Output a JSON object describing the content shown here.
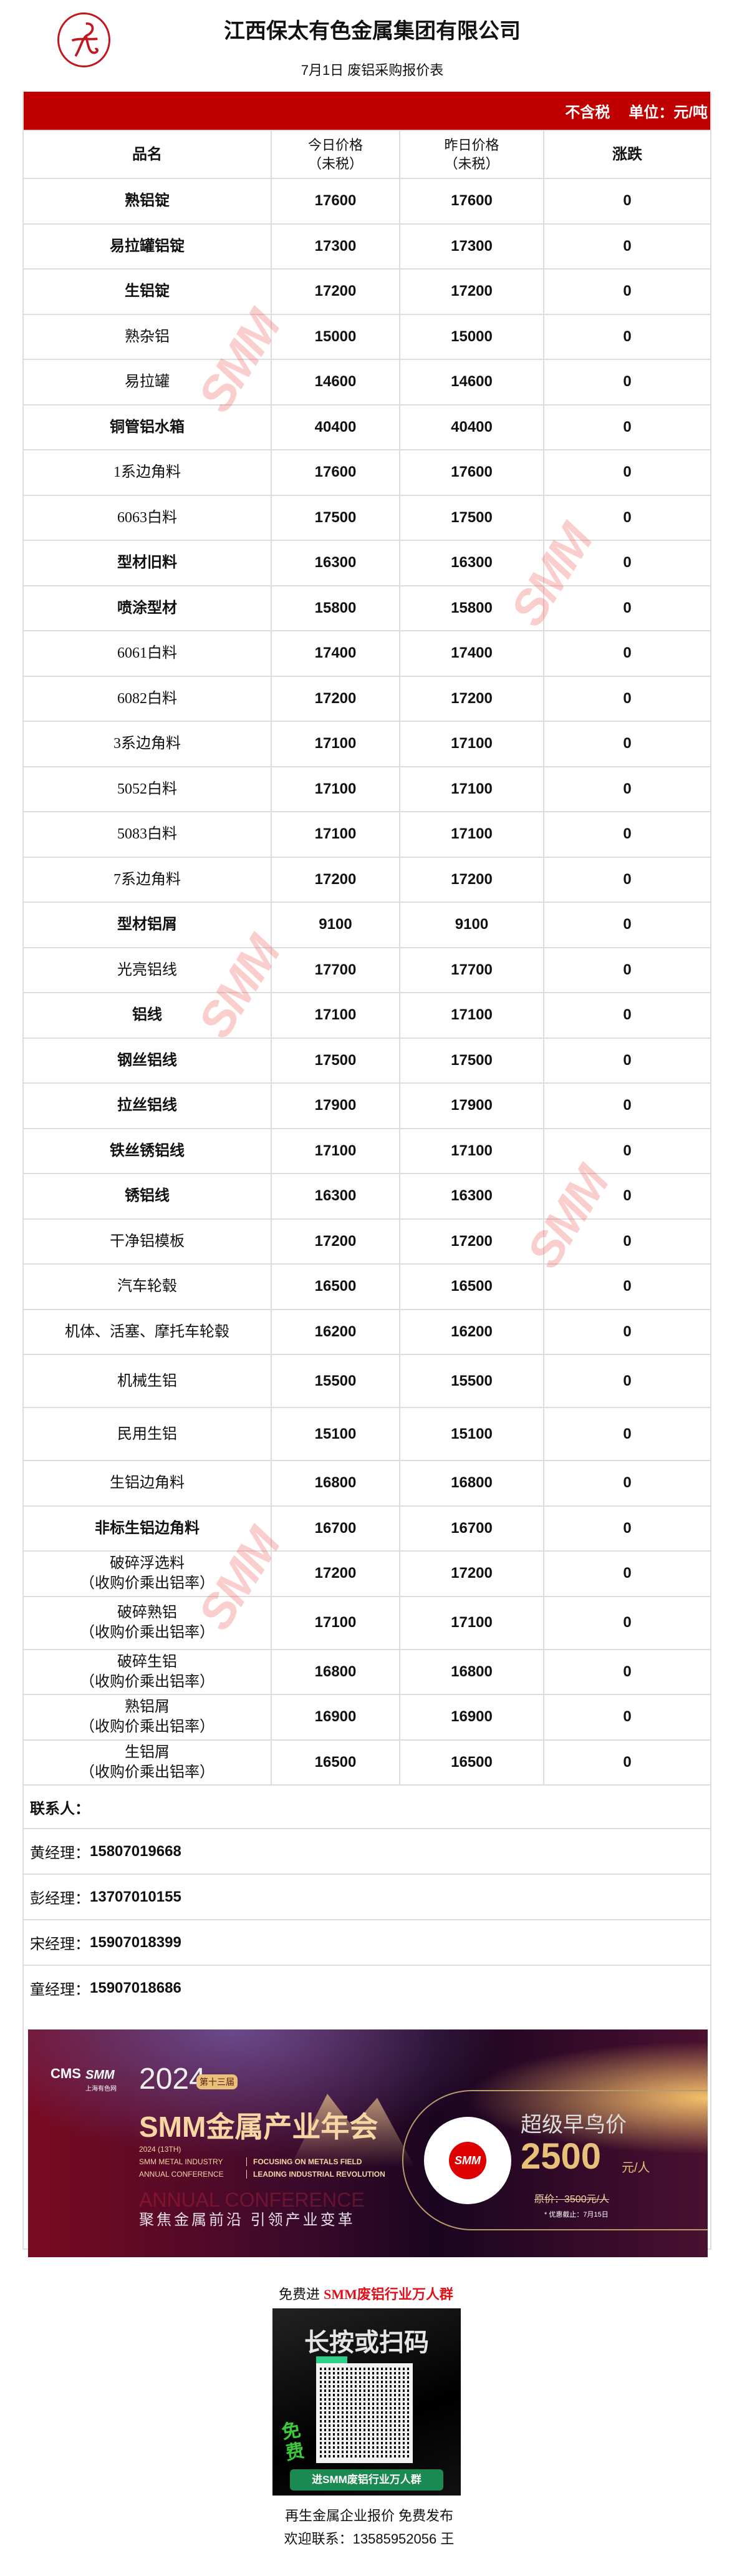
{
  "header": {
    "company": "江西保太有色金属集团有限公司",
    "subtitle": "7月1日 废铝采购报价表",
    "logo": "江西保太 logo"
  },
  "table": {
    "tax_note": "不含税",
    "unit": "单位：元/吨",
    "columns": [
      "品名",
      "今日价格\n（未税）",
      "昨日价格\n（未税）",
      "涨跌"
    ],
    "rows": [
      {
        "name": "熟铝锭",
        "today": "17600",
        "yesterday": "17600",
        "change": "0"
      },
      {
        "name": "易拉罐铝锭",
        "today": "17300",
        "yesterday": "17300",
        "change": "0"
      },
      {
        "name": "生铝锭",
        "today": "17200",
        "yesterday": "17200",
        "change": "0"
      },
      {
        "name": "熟杂铝",
        "today": "15000",
        "yesterday": "15000",
        "change": "0"
      },
      {
        "name": "易拉罐",
        "today": "14600",
        "yesterday": "14600",
        "change": "0"
      },
      {
        "name": "铜管铝水箱",
        "today": "40400",
        "yesterday": "40400",
        "change": "0"
      },
      {
        "name": "1系边角料",
        "today": "17600",
        "yesterday": "17600",
        "change": "0"
      },
      {
        "name": "6063白料",
        "today": "17500",
        "yesterday": "17500",
        "change": "0"
      },
      {
        "name": "型材旧料",
        "today": "16300",
        "yesterday": "16300",
        "change": "0"
      },
      {
        "name": "喷涂型材",
        "today": "15800",
        "yesterday": "15800",
        "change": "0"
      },
      {
        "name": "6061白料",
        "today": "17400",
        "yesterday": "17400",
        "change": "0"
      },
      {
        "name": "6082白料",
        "today": "17200",
        "yesterday": "17200",
        "change": "0"
      },
      {
        "name": "3系边角料",
        "today": "17100",
        "yesterday": "17100",
        "change": "0"
      },
      {
        "name": "5052白料",
        "today": "17100",
        "yesterday": "17100",
        "change": "0"
      },
      {
        "name": "5083白料",
        "today": "17100",
        "yesterday": "17100",
        "change": "0"
      },
      {
        "name": "7系边角料",
        "today": "17200",
        "yesterday": "17200",
        "change": "0"
      },
      {
        "name": "型材铝屑",
        "today": "9100",
        "yesterday": "9100",
        "change": "0"
      },
      {
        "name": "光亮铝线",
        "today": "17700",
        "yesterday": "17700",
        "change": "0"
      },
      {
        "name": "铝线",
        "today": "17100",
        "yesterday": "17100",
        "change": "0"
      },
      {
        "name": "钢丝铝线",
        "today": "17500",
        "yesterday": "17500",
        "change": "0"
      },
      {
        "name": "拉丝铝线",
        "today": "17900",
        "yesterday": "17900",
        "change": "0"
      },
      {
        "name": "铁丝锈铝线",
        "today": "17100",
        "yesterday": "17100",
        "change": "0"
      },
      {
        "name": "锈铝线",
        "today": "16300",
        "yesterday": "16300",
        "change": "0"
      },
      {
        "name": "干净铝模板",
        "today": "17200",
        "yesterday": "17200",
        "change": "0"
      },
      {
        "name": "汽车轮毂",
        "today": "16500",
        "yesterday": "16500",
        "change": "0"
      },
      {
        "name": "机体、活塞、摩托车轮毂",
        "today": "16200",
        "yesterday": "16200",
        "change": "0"
      },
      {
        "name": "机械生铝",
        "today": "15500",
        "yesterday": "15500",
        "change": "0"
      },
      {
        "name": "民用生铝",
        "today": "15100",
        "yesterday": "15100",
        "change": "0"
      },
      {
        "name": "生铝边角料",
        "today": "16800",
        "yesterday": "16800",
        "change": "0"
      },
      {
        "name": "非标生铝边角料",
        "today": "16700",
        "yesterday": "16700",
        "change": "0"
      },
      {
        "name": "破碎浮选料\n（收购价乘出铝率）",
        "today": "17200",
        "yesterday": "17200",
        "change": "0"
      },
      {
        "name": "破碎熟铝\n（收购价乘出铝率）",
        "today": "17100",
        "yesterday": "17100",
        "change": "0"
      },
      {
        "name": "破碎生铝\n（收购价乘出铝率）",
        "today": "16800",
        "yesterday": "16800",
        "change": "0"
      },
      {
        "name": "熟铝屑\n（收购价乘出铝率）",
        "today": "16900",
        "yesterday": "16900",
        "change": "0"
      },
      {
        "name": "生铝屑\n（收购价乘出铝率）",
        "today": "16500",
        "yesterday": "16500",
        "change": "0"
      }
    ]
  },
  "contacts": {
    "heading": "联系人：",
    "items": [
      {
        "name": "黄经理：",
        "phone": "15807019668"
      },
      {
        "name": "彭经理：",
        "phone": "13707010155"
      },
      {
        "name": "宋经理：",
        "phone": "15907018399"
      },
      {
        "name": "童经理：",
        "phone": "15907018686"
      }
    ]
  },
  "watermark": "SMM",
  "banner": {
    "cms": "CMS",
    "smm": "SMM",
    "smm_sub": "上海有色网",
    "year": "2024",
    "edition": "第十三届",
    "title": "SMM金属产业年会",
    "en1": "2024 (13TH)",
    "en2": "SMM METAL INDUSTRY",
    "en3": "ANNUAL CONFERENCE",
    "en4": "FOCUSING ON METALS FIELD",
    "en5": "LEADING INDUSTRIAL REVOLUTION",
    "en_bg": "ANNUAL CONFERENCE",
    "slogan": "聚焦金属前沿  引领产业变革",
    "early": "超级早鸟价",
    "price": "2500",
    "price_unit": "元/人",
    "original": "原价：3500元/人",
    "deadline": "* 优惠截止：7月15日",
    "qr_label": "SMM"
  },
  "promo": {
    "prefix": "免费进 ",
    "highlight": "SMM废铝行业万人群",
    "qr_heading": "长按或扫码",
    "qr_free": "免费",
    "qr_button": "进SMM废铝行业万人群",
    "line1": "再生金属企业报价 免费发布",
    "line2": "欢迎联系：13585952056 王"
  },
  "colors": {
    "header_red": "#c00000",
    "promo_red": "#e0101a",
    "logo_red": "#c0161c",
    "border": "#dddddd"
  }
}
